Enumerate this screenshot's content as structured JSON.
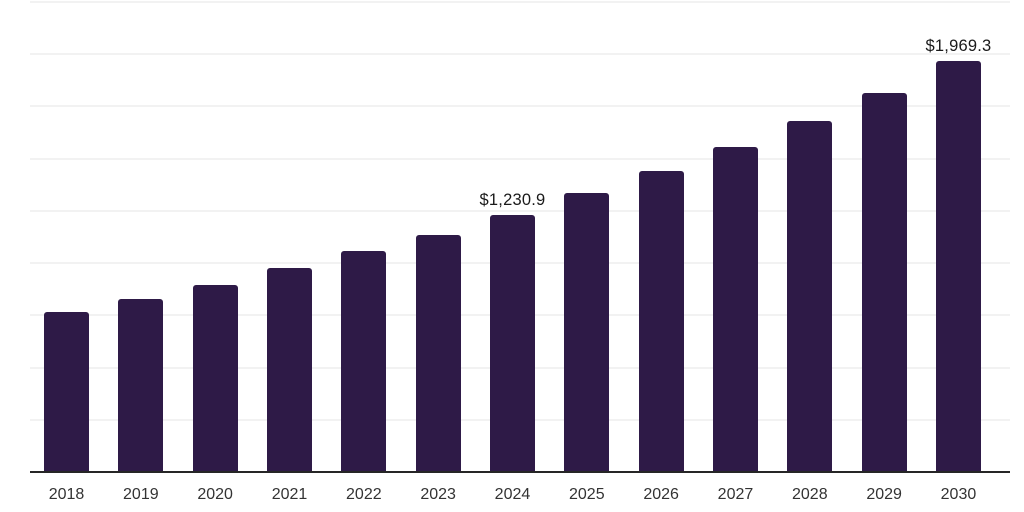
{
  "chart_data": {
    "type": "bar",
    "title": "",
    "xlabel": "",
    "ylabel": "",
    "categories": [
      "2018",
      "2019",
      "2020",
      "2021",
      "2022",
      "2023",
      "2024",
      "2025",
      "2026",
      "2027",
      "2028",
      "2029",
      "2030"
    ],
    "values": [
      766,
      828,
      895,
      976,
      1057,
      1133,
      1230.9,
      1335,
      1442,
      1556,
      1680,
      1813,
      1969.3
    ],
    "data_labels": [
      {
        "category": "2024",
        "text": "$1,230.9"
      },
      {
        "category": "2030",
        "text": "$1,969.3"
      }
    ],
    "ylim": [
      0,
      2250
    ],
    "gridline_step": 250,
    "grid": "horizontal",
    "legend": "none",
    "y_tick_labels_visible": false,
    "colors": {
      "bar": "#2e1a47",
      "axis_line": "#262626",
      "gridline": "#f2f2f2",
      "data_label_text": "#1a1a1a",
      "tick_label_text": "#333333",
      "background": "#ffffff"
    }
  }
}
